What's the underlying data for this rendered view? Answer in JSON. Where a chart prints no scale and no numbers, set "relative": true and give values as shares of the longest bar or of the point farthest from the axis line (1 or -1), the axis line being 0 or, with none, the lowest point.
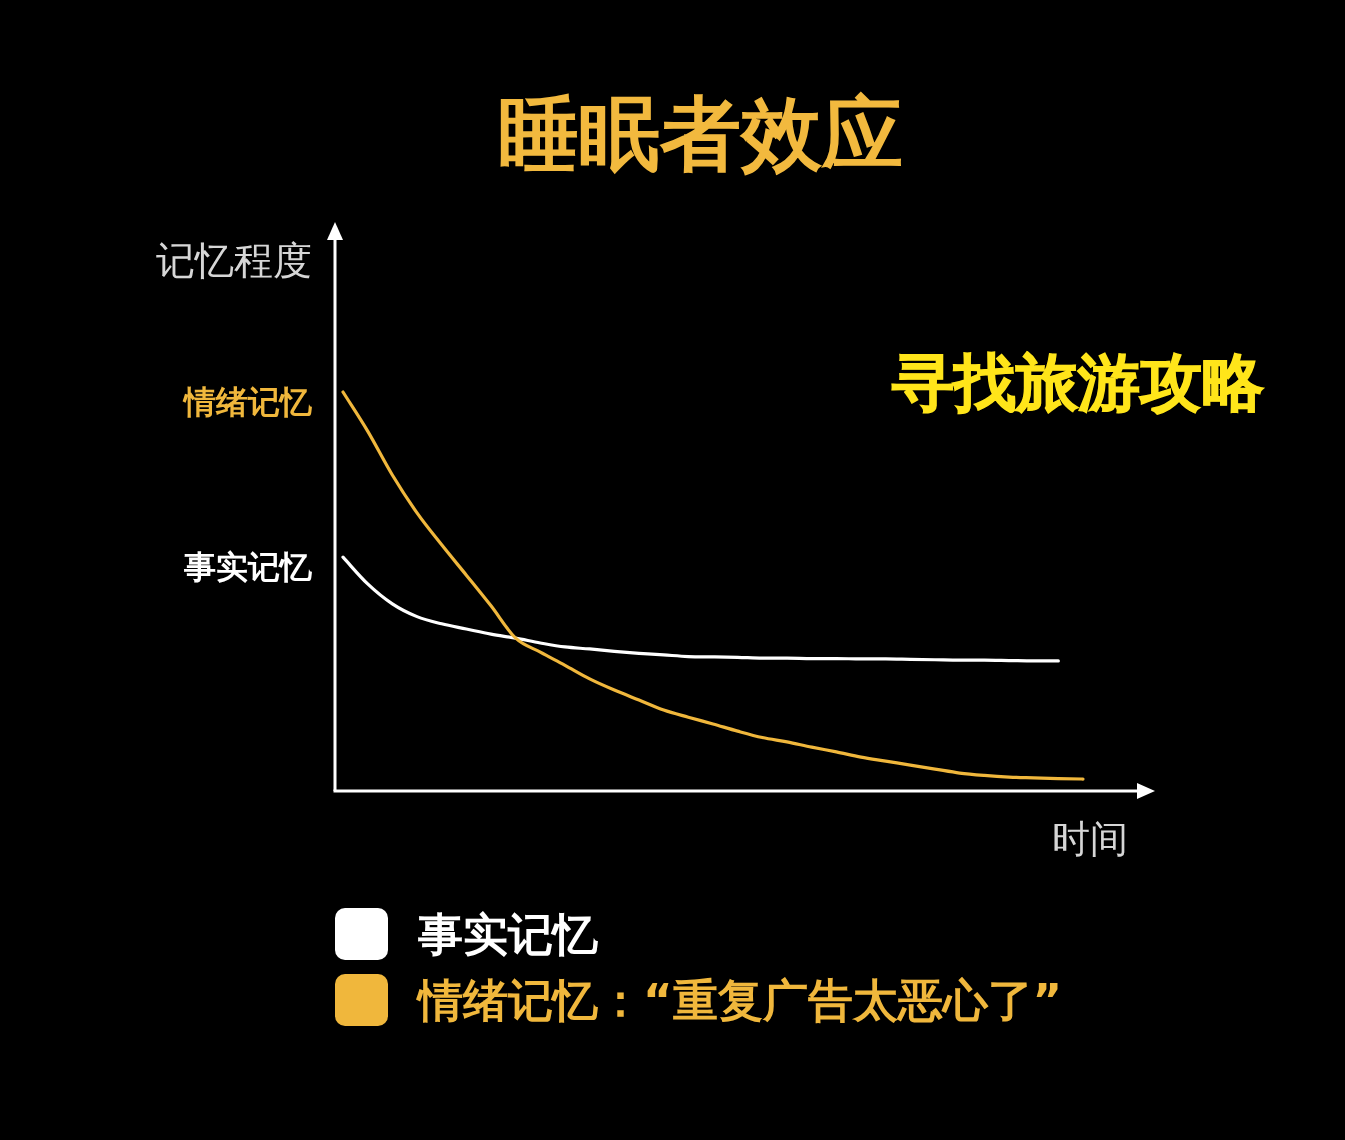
{
  "chart_data": {
    "type": "line",
    "title": "睡眠者效应",
    "xlabel": "时间",
    "ylabel": "记忆程度",
    "relative": true,
    "legend": "bottom",
    "categories": [
      null,
      null,
      null,
      null,
      null,
      null,
      null,
      null,
      null,
      null,
      null,
      null,
      null,
      null,
      null,
      null,
      null,
      null,
      null,
      null,
      null,
      null,
      null,
      null,
      null,
      null,
      null,
      null,
      null,
      null,
      null
    ],
    "series": [
      {
        "name": "事实记忆",
        "color": "#ffffff",
        "values": [
          0.586,
          0.519,
          0.469,
          0.437,
          0.419,
          0.406,
          0.393,
          0.383,
          0.371,
          0.361,
          0.356,
          0.35,
          0.345,
          0.341,
          0.337,
          0.336,
          0.335,
          0.333,
          0.333,
          0.332,
          0.332,
          0.331,
          0.331,
          0.33,
          0.329,
          0.328,
          0.328,
          0.327,
          0.326,
          0.326,
          null
        ]
      },
      {
        "name": "情绪记忆：“重复广告太恶心了”",
        "color": "#f0b73c",
        "values": [
          1.0,
          0.902,
          0.792,
          0.697,
          0.617,
          0.541,
          0.464,
          0.383,
          0.348,
          0.315,
          0.281,
          0.253,
          0.228,
          0.203,
          0.185,
          0.168,
          0.15,
          0.134,
          0.123,
          0.11,
          0.098,
          0.085,
          0.075,
          0.065,
          0.055,
          0.045,
          0.039,
          0.035,
          0.033,
          0.031,
          0.03
        ]
      }
    ],
    "annotations": [
      "寻找旅游攻略",
      "事实记忆",
      "情绪记忆"
    ]
  }
}
